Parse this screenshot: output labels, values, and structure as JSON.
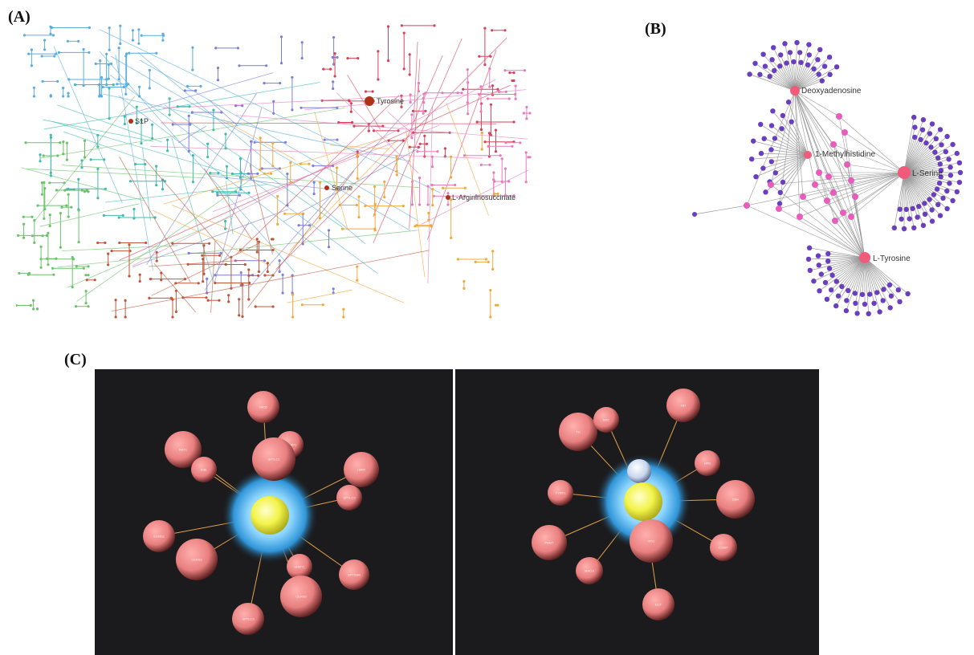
{
  "panels": {
    "a_label": "(A)",
    "b_label": "(B)",
    "c_label": "(C)"
  },
  "panel_a": {
    "highlights": [
      {
        "label": "Tyrosine"
      },
      {
        "label": "S1P"
      },
      {
        "label": "Serine"
      },
      {
        "label": "L-Argininosuccinate"
      }
    ],
    "colors": {
      "blue": "#5aaee0",
      "teal": "#3fbdb0",
      "green": "#6cc36a",
      "purple": "#7d7fd8",
      "red": "#d9415a",
      "pink": "#e77bbd",
      "orange": "#f2a93b",
      "brown": "#c0563a",
      "highlight": "#b03018"
    }
  },
  "panel_b": {
    "hubs": [
      {
        "label": "Deoxyadenosine"
      },
      {
        "label": "1-Methylhistidine"
      },
      {
        "label": "L-Serine"
      },
      {
        "label": "L-Tyrosine"
      }
    ],
    "colors": {
      "hub": "#f25a7a",
      "leaf": "#6a3fbf",
      "mid": "#e85cbb",
      "edge": "#999999"
    }
  },
  "panel_c": {
    "left_nodes": [
      "NR52",
      "NAT1",
      "SSIL",
      "SRGAP1",
      "SPTLC1",
      "LNPK",
      "SPTLC2",
      "SGMS1",
      "CERS2",
      "SHMT1",
      "SPTSSB",
      "CERS6",
      "SPTLC3"
    ],
    "right_nodes": [
      "TH",
      "DDC",
      "TAT",
      "HPD",
      "TYRP1",
      "DBH",
      "PNMT",
      "COMT",
      "MAOA",
      "TPO",
      "DCT",
      "NAT2"
    ],
    "colors": {
      "background": "#1b1b1d",
      "sphere": "#f08a8a",
      "center": "#f3f34a",
      "glow": "#38a9e6",
      "edge": "#e2a04a"
    }
  }
}
